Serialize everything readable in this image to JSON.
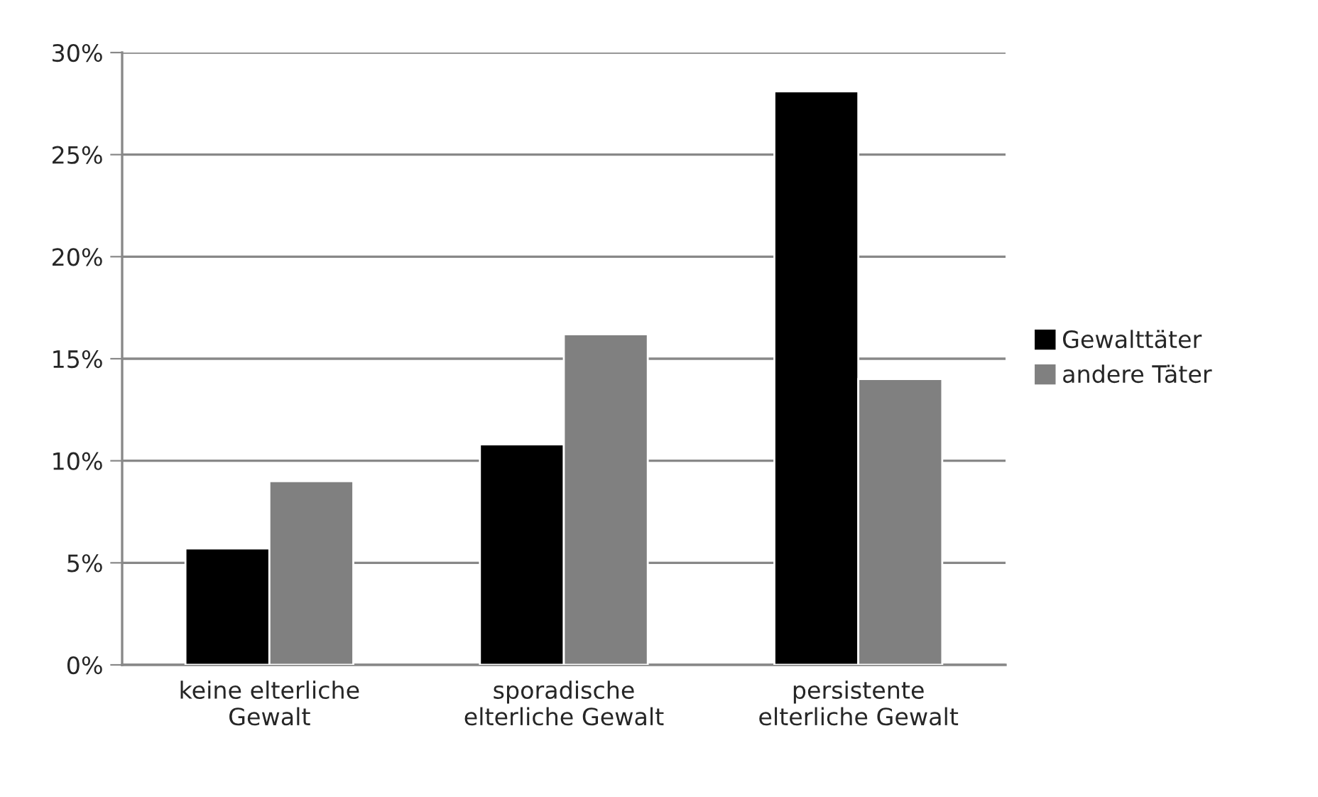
{
  "chart_data": {
    "type": "bar",
    "categories": [
      "keine elterliche\nGewalt",
      "sporadische\nelterliche Gewalt",
      "persistente\nelterliche Gewalt"
    ],
    "series": [
      {
        "name": "Gewalttäter",
        "color": "#000000",
        "values": [
          5.7,
          10.8,
          28.1
        ]
      },
      {
        "name": "andere Täter",
        "color": "#808080",
        "values": [
          9.0,
          16.2,
          14.0
        ]
      }
    ],
    "ylim": [
      0,
      30
    ],
    "yticks": [
      {
        "value": 0,
        "label": "0%"
      },
      {
        "value": 5,
        "label": "5%"
      },
      {
        "value": 10,
        "label": "10%"
      },
      {
        "value": 15,
        "label": "15%"
      },
      {
        "value": 20,
        "label": "20%"
      },
      {
        "value": 25,
        "label": "25%"
      },
      {
        "value": 30,
        "label": "30%"
      }
    ],
    "grid": "y",
    "legend": "right"
  }
}
